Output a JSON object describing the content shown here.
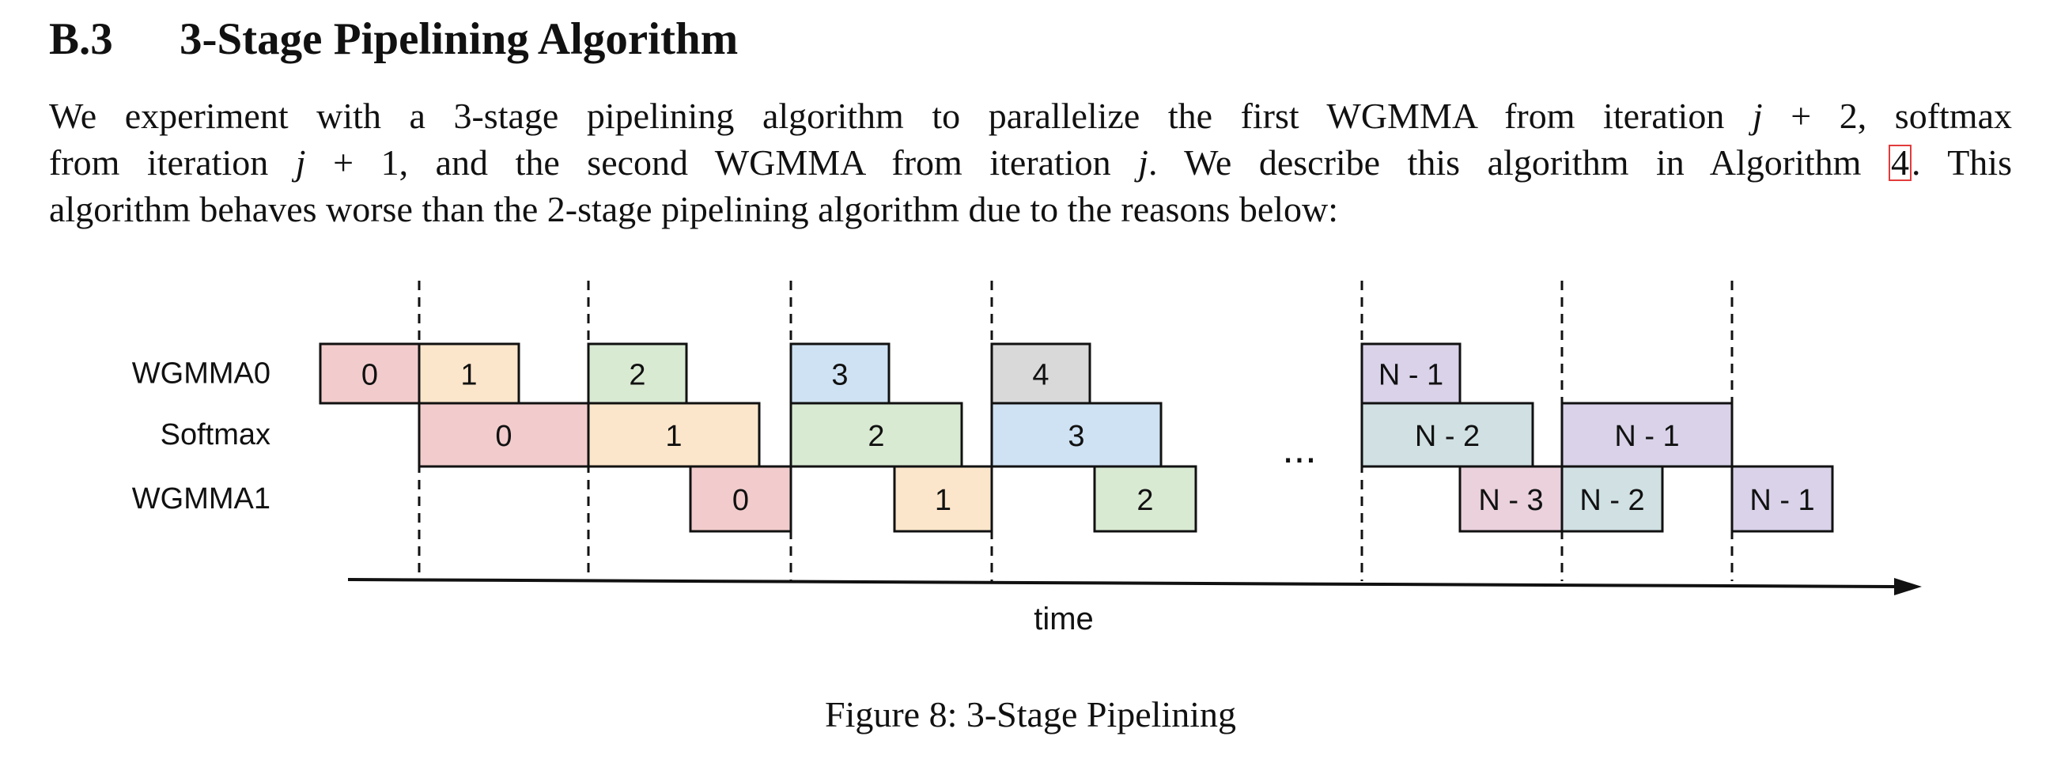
{
  "section": {
    "number": "B.3",
    "title": "3-Stage Pipelining Algorithm"
  },
  "paragraph": {
    "line1_a": "We experiment with a 3-stage pipelining algorithm to parallelize the first WGMMA from iteration ",
    "line1_math": "j",
    "line1_b": " + 2, softmax",
    "line2_a": "from iteration ",
    "line2_math1": "j",
    "line2_b": " + 1, and the second WGMMA from iteration ",
    "line2_math2": "j",
    "line2_c": ". We describe this algorithm in Algorithm ",
    "line2_ref": "4",
    "line2_d": ". This",
    "line3": "algorithm behaves worse than the 2-stage pipelining algorithm due to the reasons below:"
  },
  "figure": {
    "caption": "Figure 8: 3-Stage Pipelining",
    "time_label": "time",
    "ellipsis": "...",
    "colors": {
      "pink": "#f2cccc",
      "peach": "#fce6cb",
      "green": "#d9ead3",
      "blue": "#cfe2f3",
      "gray": "#d9d9d9",
      "purple": "#d9d2e9",
      "teal": "#d0e0e3",
      "mauve": "#ead1dc",
      "stroke": "#111111"
    },
    "rows": [
      {
        "label": "WGMMA0",
        "blocks": [
          {
            "label": "0",
            "color": "pink"
          },
          {
            "label": "1",
            "color": "peach"
          },
          {
            "label": "2",
            "color": "green"
          },
          {
            "label": "3",
            "color": "blue"
          },
          {
            "label": "4",
            "color": "gray"
          },
          {
            "label": "N - 1",
            "color": "purple"
          }
        ]
      },
      {
        "label": "Softmax",
        "blocks": [
          {
            "label": "0",
            "color": "pink"
          },
          {
            "label": "1",
            "color": "peach"
          },
          {
            "label": "2",
            "color": "green"
          },
          {
            "label": "3",
            "color": "blue"
          },
          {
            "label": "N - 2",
            "color": "teal"
          },
          {
            "label": "N - 1",
            "color": "purple"
          }
        ]
      },
      {
        "label": "WGMMA1",
        "blocks": [
          {
            "label": "0",
            "color": "pink"
          },
          {
            "label": "1",
            "color": "peach"
          },
          {
            "label": "2",
            "color": "green"
          },
          {
            "label": "N - 3",
            "color": "mauve"
          },
          {
            "label": "N - 2",
            "color": "teal"
          },
          {
            "label": "N - 1",
            "color": "purple"
          }
        ]
      }
    ]
  }
}
